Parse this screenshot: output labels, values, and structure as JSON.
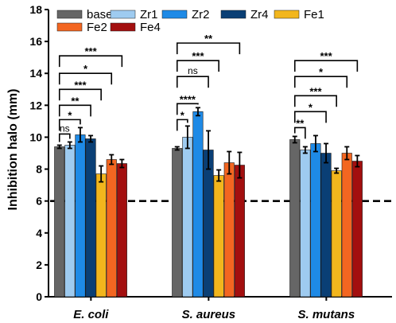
{
  "chart_data": {
    "type": "bar",
    "ylabel": "Inhibition halo (mm)",
    "xlabel": "",
    "ylim": [
      0,
      18
    ],
    "yticks": [
      "0",
      "2",
      "4",
      "6",
      "8",
      "10",
      "12",
      "14",
      "16",
      "18"
    ],
    "categories": [
      "E. coli",
      "S. aureus",
      "S. mutans"
    ],
    "legend_position": "top",
    "reference_line": {
      "y": 6,
      "style": "dashed"
    },
    "series": [
      {
        "name": "base",
        "color": "#666666",
        "values": [
          9.4,
          9.3,
          9.85
        ],
        "errors": [
          0.1,
          0.1,
          0.2
        ]
      },
      {
        "name": "Zr1",
        "color": "#9ecbf0",
        "values": [
          9.5,
          10.0,
          9.2
        ],
        "errors": [
          0.2,
          0.7,
          0.2
        ]
      },
      {
        "name": "Zr2",
        "color": "#1e8ae6",
        "values": [
          10.15,
          11.6,
          9.6
        ],
        "errors": [
          0.45,
          0.25,
          0.5
        ]
      },
      {
        "name": "Zr4",
        "color": "#0a3f75",
        "values": [
          9.9,
          9.2,
          9.0
        ],
        "errors": [
          0.2,
          1.2,
          0.6
        ]
      },
      {
        "name": "Fe1",
        "color": "#f2b61d",
        "values": [
          7.7,
          7.6,
          7.9
        ],
        "errors": [
          0.5,
          0.35,
          0.15
        ]
      },
      {
        "name": "Fe2",
        "color": "#f36621",
        "values": [
          8.6,
          8.4,
          9.0
        ],
        "errors": [
          0.3,
          0.7,
          0.4
        ]
      },
      {
        "name": "Fe4",
        "color": "#a30f0f",
        "values": [
          8.35,
          8.25,
          8.5
        ],
        "errors": [
          0.25,
          0.8,
          0.35
        ]
      }
    ],
    "significance": [
      [
        {
          "target": 1,
          "label": "ns",
          "level": 10.2
        },
        {
          "target": 2,
          "label": "*",
          "level": 11.1
        },
        {
          "target": 3,
          "label": "**",
          "level": 12.0
        },
        {
          "target": 4,
          "label": "***",
          "level": 13.0
        },
        {
          "target": 5,
          "label": "*",
          "level": 14.0
        },
        {
          "target": 6,
          "label": "***",
          "level": 15.1
        }
      ],
      [
        {
          "target": 1,
          "label": "*",
          "level": 11.1
        },
        {
          "target": 2,
          "label": "****",
          "level": 12.1
        },
        {
          "target": 3,
          "label": "ns",
          "level": 13.8
        },
        {
          "target": 4,
          "label": "***",
          "level": 14.8
        },
        {
          "target": 6,
          "label": "**",
          "level": 15.9
        }
      ],
      [
        {
          "target": 1,
          "label": "**",
          "level": 10.6
        },
        {
          "target": 3,
          "label": "*",
          "level": 11.6
        },
        {
          "target": 4,
          "label": "***",
          "level": 12.6
        },
        {
          "target": 5,
          "label": "*",
          "level": 13.8
        },
        {
          "target": 6,
          "label": "***",
          "level": 14.8
        }
      ]
    ]
  }
}
